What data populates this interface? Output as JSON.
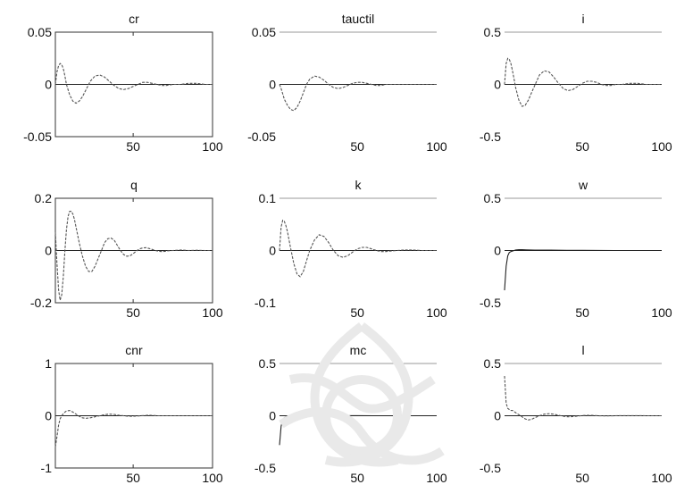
{
  "chart_data": [
    {
      "type": "line",
      "title": "cr",
      "xlim": [
        1,
        100
      ],
      "ylim": [
        -0.05,
        0.05
      ],
      "yticks": [
        "0.05",
        "0",
        "-0.05"
      ],
      "xticks": [
        "50",
        "100"
      ],
      "line_color": "#555555",
      "series": [
        {
          "x": [
            1,
            2,
            3,
            4,
            5,
            6,
            7,
            8,
            10,
            12,
            14,
            16,
            18,
            20,
            23,
            26,
            29,
            32,
            35,
            38,
            41,
            44,
            47,
            50,
            53,
            56,
            59,
            62,
            65,
            68,
            71,
            75,
            80,
            85,
            90,
            95,
            100
          ],
          "y": [
            0.0,
            0.012,
            0.018,
            0.02,
            0.019,
            0.015,
            0.008,
            0.0,
            -0.01,
            -0.016,
            -0.018,
            -0.016,
            -0.012,
            -0.006,
            0.003,
            0.008,
            0.009,
            0.007,
            0.003,
            -0.001,
            -0.004,
            -0.005,
            -0.004,
            -0.002,
            0.0,
            0.002,
            0.002,
            0.001,
            0.0,
            -0.001,
            -0.001,
            0.0,
            0.0,
            0.001,
            0.001,
            0.0,
            0.0
          ]
        }
      ]
    },
    {
      "type": "line",
      "title": "tauctil",
      "xlim": [
        1,
        100
      ],
      "ylim": [
        -0.05,
        0.05
      ],
      "yticks": [
        "0.05",
        "0",
        "-0.05"
      ],
      "xticks": [
        "50",
        "100"
      ],
      "line_color": "#555555",
      "series": [
        {
          "x": [
            1,
            2,
            3,
            4,
            6,
            8,
            10,
            12,
            14,
            16,
            18,
            20,
            23,
            26,
            29,
            32,
            35,
            38,
            41,
            44,
            47,
            50,
            53,
            56,
            59,
            62,
            65,
            68,
            71,
            75,
            80,
            85,
            90,
            95,
            100
          ],
          "y": [
            0.0,
            -0.004,
            -0.009,
            -0.014,
            -0.02,
            -0.024,
            -0.025,
            -0.022,
            -0.016,
            -0.008,
            0.0,
            0.005,
            0.008,
            0.007,
            0.004,
            0.0,
            -0.003,
            -0.004,
            -0.003,
            -0.001,
            0.001,
            0.002,
            0.002,
            0.001,
            0.0,
            -0.001,
            -0.001,
            0.0,
            0.0,
            0.0,
            0.0,
            0.0,
            0.0,
            0.0,
            0.0
          ]
        }
      ]
    },
    {
      "type": "line",
      "title": "i",
      "xlim": [
        1,
        100
      ],
      "ylim": [
        -0.5,
        0.5
      ],
      "yticks": [
        "0.5",
        "0",
        "-0.5"
      ],
      "xticks": [
        "50",
        "100"
      ],
      "line_color": "#555555",
      "series": [
        {
          "x": [
            1,
            2,
            3,
            4,
            5,
            6,
            7,
            8,
            10,
            12,
            14,
            16,
            18,
            20,
            23,
            26,
            29,
            32,
            35,
            38,
            41,
            44,
            47,
            50,
            53,
            56,
            59,
            62,
            65,
            68,
            71,
            75,
            80,
            85,
            90,
            95,
            100
          ],
          "y": [
            0.0,
            0.2,
            0.25,
            0.24,
            0.2,
            0.13,
            0.05,
            -0.03,
            -0.15,
            -0.21,
            -0.2,
            -0.15,
            -0.08,
            -0.01,
            0.09,
            0.13,
            0.12,
            0.07,
            0.01,
            -0.04,
            -0.06,
            -0.05,
            -0.02,
            0.01,
            0.03,
            0.03,
            0.02,
            0.0,
            -0.01,
            -0.01,
            0.0,
            0.0,
            0.01,
            0.01,
            0.0,
            0.0,
            0.0
          ]
        }
      ]
    },
    {
      "type": "line",
      "title": "q",
      "xlim": [
        1,
        100
      ],
      "ylim": [
        -0.2,
        0.2
      ],
      "yticks": [
        "0.2",
        "0",
        "-0.2"
      ],
      "xticks": [
        "50",
        "100"
      ],
      "line_color": "#555555",
      "series": [
        {
          "x": [
            1,
            2,
            3,
            4,
            5,
            6,
            7,
            8,
            9,
            10,
            11,
            12,
            13,
            14,
            15,
            16,
            18,
            20,
            22,
            24,
            26,
            28,
            30,
            32,
            34,
            36,
            38,
            40,
            42,
            44,
            46,
            48,
            50,
            52,
            54,
            56,
            58,
            60,
            62,
            64,
            66,
            68,
            70,
            72,
            75,
            80,
            85,
            90,
            95,
            100
          ],
          "y": [
            0.07,
            -0.05,
            -0.15,
            -0.19,
            -0.17,
            -0.1,
            0.0,
            0.08,
            0.13,
            0.15,
            0.15,
            0.14,
            0.12,
            0.09,
            0.06,
            0.03,
            -0.02,
            -0.06,
            -0.08,
            -0.08,
            -0.06,
            -0.03,
            0.0,
            0.03,
            0.045,
            0.048,
            0.04,
            0.02,
            0.0,
            -0.015,
            -0.022,
            -0.02,
            -0.012,
            -0.002,
            0.006,
            0.01,
            0.011,
            0.008,
            0.004,
            0.0,
            -0.003,
            -0.004,
            -0.003,
            -0.001,
            0.0,
            0.002,
            0.0,
            0.001,
            0.0,
            0.0
          ]
        }
      ]
    },
    {
      "type": "line",
      "title": "k",
      "xlim": [
        1,
        100
      ],
      "ylim": [
        -0.1,
        0.1
      ],
      "yticks": [
        "0.1",
        "0",
        "-0.1"
      ],
      "xticks": [
        "50",
        "100"
      ],
      "line_color": "#555555",
      "series": [
        {
          "x": [
            1,
            2,
            3,
            4,
            5,
            6,
            7,
            8,
            10,
            12,
            14,
            16,
            18,
            20,
            23,
            26,
            29,
            32,
            35,
            38,
            41,
            44,
            47,
            50,
            53,
            56,
            59,
            62,
            65,
            68,
            71,
            75,
            80,
            85,
            90,
            95,
            100
          ],
          "y": [
            0.0,
            0.045,
            0.058,
            0.056,
            0.048,
            0.036,
            0.02,
            0.005,
            -0.025,
            -0.045,
            -0.05,
            -0.04,
            -0.02,
            0.0,
            0.02,
            0.03,
            0.027,
            0.015,
            0.0,
            -0.01,
            -0.013,
            -0.01,
            -0.003,
            0.003,
            0.006,
            0.006,
            0.003,
            0.0,
            -0.002,
            -0.002,
            -0.001,
            0.0,
            0.001,
            0.001,
            0.0,
            0.0,
            0.0
          ]
        }
      ]
    },
    {
      "type": "line",
      "title": "w",
      "xlim": [
        1,
        100
      ],
      "ylim": [
        -0.5,
        0.5
      ],
      "yticks": [
        "0.5",
        "0",
        "-0.5"
      ],
      "xticks": [
        "50",
        "100"
      ],
      "line_color": "#222222",
      "series": [
        {
          "x": [
            1,
            2,
            3,
            4,
            5,
            6,
            7,
            8,
            10,
            12,
            15,
            20,
            30,
            40,
            50,
            60,
            70,
            80,
            90,
            100
          ],
          "y": [
            -0.38,
            -0.15,
            -0.05,
            -0.02,
            -0.01,
            -0.005,
            0.0,
            0.005,
            0.008,
            0.008,
            0.006,
            0.004,
            0.003,
            0.002,
            0.002,
            0.001,
            0.0,
            0.0,
            0.0,
            0.0
          ]
        }
      ]
    },
    {
      "type": "line",
      "title": "cnr",
      "xlim": [
        1,
        100
      ],
      "ylim": [
        -1,
        1
      ],
      "yticks": [
        "1",
        "0",
        "-1"
      ],
      "xticks": [
        "50",
        "100"
      ],
      "line_color": "#555555",
      "series": [
        {
          "x": [
            1,
            2,
            3,
            4,
            5,
            6,
            7,
            8,
            10,
            12,
            14,
            16,
            18,
            20,
            23,
            26,
            29,
            32,
            35,
            38,
            41,
            44,
            47,
            50,
            55,
            60,
            65,
            70,
            80,
            90,
            100
          ],
          "y": [
            -0.6,
            -0.4,
            -0.18,
            -0.06,
            0.0,
            0.04,
            0.07,
            0.09,
            0.1,
            0.07,
            0.03,
            -0.01,
            -0.04,
            -0.05,
            -0.04,
            -0.02,
            0.0,
            0.02,
            0.03,
            0.025,
            0.01,
            0.0,
            -0.01,
            -0.01,
            0.0,
            0.01,
            0.0,
            0.0,
            0.0,
            0.0,
            0.0
          ]
        }
      ]
    },
    {
      "type": "line",
      "title": "mc",
      "xlim": [
        1,
        100
      ],
      "ylim": [
        -0.5,
        0.5
      ],
      "yticks": [
        "0.5",
        "0",
        "-0.5"
      ],
      "xticks": [
        "50",
        "100"
      ],
      "line_color": "#222222",
      "series": [
        {
          "x": [
            1,
            2,
            3,
            4,
            5,
            6,
            8,
            10,
            15,
            20,
            30,
            40,
            50,
            60,
            70,
            80,
            90,
            100
          ],
          "y": [
            -0.28,
            -0.1,
            -0.04,
            -0.02,
            -0.01,
            -0.005,
            0.0,
            0.003,
            0.004,
            0.003,
            0.002,
            0.001,
            0.001,
            0.0,
            0.0,
            0.0,
            0.0,
            0.0
          ]
        }
      ]
    },
    {
      "type": "line",
      "title": "l",
      "xlim": [
        1,
        100
      ],
      "ylim": [
        -0.5,
        0.5
      ],
      "yticks": [
        "0.5",
        "0",
        "-0.5"
      ],
      "xticks": [
        "50",
        "100"
      ],
      "line_color": "#555555",
      "series": [
        {
          "x": [
            1,
            2,
            3,
            4,
            5,
            6,
            7,
            8,
            10,
            12,
            14,
            16,
            18,
            20,
            23,
            26,
            29,
            32,
            35,
            38,
            41,
            44,
            47,
            50,
            53,
            56,
            60,
            65,
            70,
            80,
            90,
            100
          ],
          "y": [
            0.38,
            0.12,
            0.07,
            0.06,
            0.05,
            0.05,
            0.04,
            0.03,
            0.01,
            -0.01,
            -0.03,
            -0.04,
            -0.035,
            -0.02,
            0.0,
            0.015,
            0.02,
            0.015,
            0.005,
            -0.005,
            -0.01,
            -0.008,
            -0.003,
            0.002,
            0.004,
            0.003,
            0.0,
            -0.002,
            0.0,
            0.001,
            0.0,
            0.0
          ]
        }
      ]
    }
  ]
}
